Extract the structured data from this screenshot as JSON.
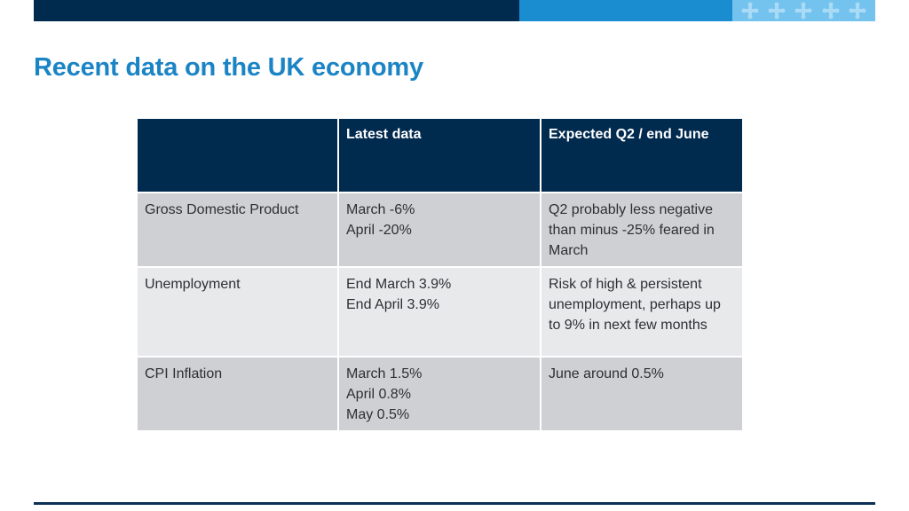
{
  "slide": {
    "title": "Recent data on the UK economy"
  },
  "colors": {
    "header_bar_dark": "#012a4f",
    "header_bar_mid": "#1a8dd1",
    "header_bar_light": "#74c2ee",
    "title": "#1b84c5",
    "table_header_bg": "#012a4f",
    "row_dark_bg": "#cfd0d4",
    "row_light_bg": "#e8e9eb"
  },
  "decor": {
    "bar_icon": "cross-pattern-icon",
    "bar_icon_count": 5
  },
  "table": {
    "headers": [
      "",
      "Latest data",
      "Expected Q2 / end June"
    ],
    "rows": [
      {
        "indicator": "Gross Domestic Product",
        "latest": [
          "March -6%",
          "April -20%"
        ],
        "expected": "Q2 probably less negative than minus -25% feared in March"
      },
      {
        "indicator": "Unemployment",
        "latest": [
          "End March 3.9%",
          "End April 3.9%"
        ],
        "expected": "Risk of high & persistent unemployment, perhaps up to 9% in next few months"
      },
      {
        "indicator": "CPI Inflation",
        "latest": [
          "March 1.5%",
          "April 0.8%",
          "May 0.5%"
        ],
        "expected": "June around 0.5%"
      }
    ]
  }
}
